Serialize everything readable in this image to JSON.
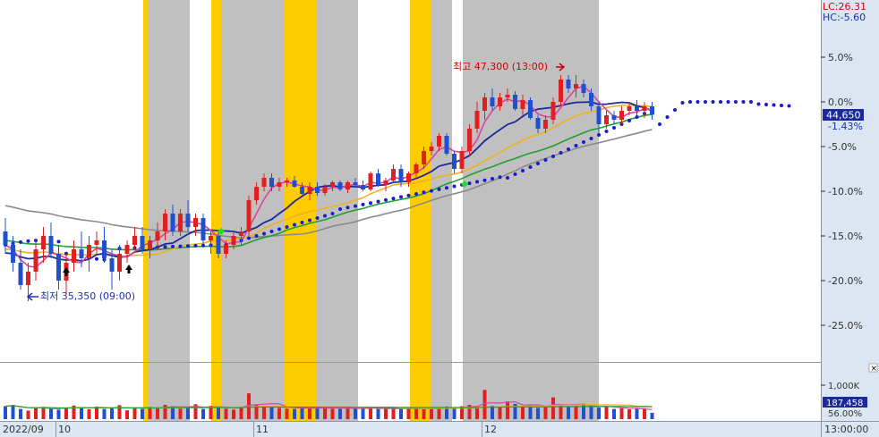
{
  "corner_labels": {
    "lc": "LC:26.31",
    "hc": "HC:-5.60"
  },
  "annotations": {
    "high_label": "최고 47,300 (13:00)",
    "low_label": "최저 35,350 (09:00)"
  },
  "price_panel": {
    "current_price": "44,650",
    "current_pct": "-1.43%"
  },
  "volume_panel": {
    "tick_label": "1,000K",
    "current_volume": "187,458",
    "current_pct": "56.00%",
    "close_icon": "close-icon"
  },
  "x_axis": {
    "labels": [
      "2022/09",
      "10",
      "11",
      "12"
    ],
    "time_label": "13:00:00"
  },
  "colors": {
    "up": "#e02020",
    "down": "#2050d0",
    "ma5": "#e040a0",
    "ma20": "#1a2a9a",
    "ma60": "#f0b020",
    "ma120": "#20a030",
    "ma240": "#8a8a8a",
    "sar": "#1a1ad0",
    "gray_band": "#c0c0c0",
    "yellow_band": "#ffcc00",
    "axis_panel": "#dce6f2",
    "price_box": "#1a2a9a"
  },
  "chart_data": {
    "type": "candlestick",
    "y_axis_unit": "%",
    "y_ticks": [
      "5.0%",
      "0.0%",
      "-5.0%",
      "-10.0%",
      "-15.0%",
      "-20.0%",
      "-25.0%"
    ],
    "y_range_pct": [
      -30,
      7
    ],
    "high_pct": 3.0,
    "low_pct": -22.3,
    "current_pct": -1.43,
    "candles_pct": [
      [
        -14.5,
        -13.0,
        -17.0,
        -16.0
      ],
      [
        -16.0,
        -15.0,
        -19.0,
        -18.0
      ],
      [
        -18.0,
        -16.5,
        -21.0,
        -20.5
      ],
      [
        -20.5,
        -18.0,
        -22.3,
        -19.0
      ],
      [
        -19.0,
        -15.5,
        -20.0,
        -16.5
      ],
      [
        -16.5,
        -14.0,
        -18.0,
        -15.0
      ],
      [
        -15.0,
        -13.5,
        -17.5,
        -17.0
      ],
      [
        -17.0,
        -16.0,
        -21.0,
        -20.0
      ],
      [
        -20.0,
        -17.0,
        -21.5,
        -18.0
      ],
      [
        -18.0,
        -15.5,
        -19.0,
        -16.5
      ],
      [
        -16.5,
        -14.5,
        -18.5,
        -17.5
      ],
      [
        -17.5,
        -15.0,
        -19.0,
        -16.0
      ],
      [
        -16.0,
        -14.5,
        -17.0,
        -15.5
      ],
      [
        -15.5,
        -14.0,
        -18.0,
        -17.5
      ],
      [
        -17.5,
        -16.5,
        -21.0,
        -19.0
      ],
      [
        -19.0,
        -16.0,
        -20.0,
        -17.0
      ],
      [
        -17.0,
        -15.5,
        -18.0,
        -16.0
      ],
      [
        -16.0,
        -14.0,
        -16.5,
        -15.0
      ],
      [
        -15.0,
        -14.0,
        -17.0,
        -16.5
      ],
      [
        -16.5,
        -15.0,
        -17.5,
        -15.5
      ],
      [
        -15.5,
        -13.5,
        -16.5,
        -14.5
      ],
      [
        -14.5,
        -12.0,
        -15.5,
        -12.5
      ],
      [
        -12.5,
        -11.5,
        -15.0,
        -14.5
      ],
      [
        -14.5,
        -12.0,
        -15.0,
        -12.5
      ],
      [
        -12.5,
        -11.0,
        -14.5,
        -14.0
      ],
      [
        -14.0,
        -12.5,
        -15.0,
        -13.0
      ],
      [
        -13.0,
        -12.5,
        -16.0,
        -15.5
      ],
      [
        -15.5,
        -14.5,
        -17.0,
        -15.0
      ],
      [
        -15.0,
        -14.5,
        -17.5,
        -17.0
      ],
      [
        -17.0,
        -15.5,
        -17.5,
        -16.0
      ],
      [
        -16.0,
        -14.5,
        -16.5,
        -15.0
      ],
      [
        -15.0,
        -14.0,
        -16.0,
        -14.5
      ],
      [
        -14.5,
        -10.5,
        -15.0,
        -11.0
      ],
      [
        -11.0,
        -9.0,
        -11.5,
        -9.5
      ],
      [
        -9.5,
        -8.0,
        -10.0,
        -8.5
      ],
      [
        -8.5,
        -8.0,
        -10.0,
        -9.5
      ],
      [
        -9.5,
        -8.5,
        -10.0,
        -9.0
      ],
      [
        -9.0,
        -8.5,
        -9.5,
        -8.8
      ],
      [
        -8.8,
        -8.3,
        -9.6,
        -9.5
      ],
      [
        -9.5,
        -9.0,
        -10.5,
        -10.3
      ],
      [
        -10.3,
        -9.0,
        -11.0,
        -9.5
      ],
      [
        -9.5,
        -9.0,
        -10.5,
        -10.2
      ],
      [
        -10.2,
        -9.2,
        -10.5,
        -9.5
      ],
      [
        -9.5,
        -8.8,
        -10.0,
        -9.0
      ],
      [
        -9.0,
        -8.8,
        -10.0,
        -9.8
      ],
      [
        -9.8,
        -8.8,
        -10.2,
        -9.0
      ],
      [
        -9.0,
        -8.5,
        -9.5,
        -9.3
      ],
      [
        -9.3,
        -8.8,
        -10.0,
        -9.8
      ],
      [
        -9.8,
        -7.8,
        -10.0,
        -8.0
      ],
      [
        -8.0,
        -7.5,
        -9.5,
        -9.3
      ],
      [
        -9.3,
        -8.5,
        -10.0,
        -8.8
      ],
      [
        -8.8,
        -7.0,
        -9.0,
        -7.5
      ],
      [
        -7.5,
        -7.0,
        -9.5,
        -9.0
      ],
      [
        -9.0,
        -7.8,
        -9.5,
        -8.0
      ],
      [
        -8.0,
        -6.8,
        -8.5,
        -7.0
      ],
      [
        -7.0,
        -5.0,
        -7.5,
        -5.5
      ],
      [
        -5.5,
        -4.5,
        -6.0,
        -5.0
      ],
      [
        -5.0,
        -3.5,
        -5.5,
        -3.8
      ],
      [
        -3.8,
        -3.5,
        -6.0,
        -5.8
      ],
      [
        -5.8,
        -5.5,
        -8.0,
        -7.5
      ],
      [
        -7.5,
        -5.0,
        -8.0,
        -5.5
      ],
      [
        -5.5,
        -2.5,
        -6.0,
        -3.0
      ],
      [
        -3.0,
        0.0,
        -3.5,
        -1.0
      ],
      [
        -1.0,
        1.0,
        -2.0,
        0.5
      ],
      [
        0.5,
        1.5,
        -1.0,
        -0.5
      ],
      [
        -0.5,
        1.0,
        -1.0,
        0.5
      ],
      [
        0.5,
        1.5,
        0.0,
        0.8
      ],
      [
        0.8,
        1.2,
        -1.0,
        -0.8
      ],
      [
        -0.8,
        0.8,
        -1.5,
        0.2
      ],
      [
        0.2,
        0.5,
        -2.0,
        -1.8
      ],
      [
        -1.8,
        -1.5,
        -3.5,
        -3.0
      ],
      [
        -3.0,
        -1.5,
        -3.5,
        -2.0
      ],
      [
        -2.0,
        0.5,
        -2.5,
        0.0
      ],
      [
        0.0,
        3.0,
        -0.5,
        2.5
      ],
      [
        2.5,
        3.0,
        1.0,
        1.5
      ],
      [
        1.5,
        3.0,
        0.5,
        2.0
      ],
      [
        2.0,
        2.5,
        0.5,
        1.0
      ],
      [
        1.0,
        1.5,
        -1.0,
        -0.5
      ],
      [
        -0.5,
        0.0,
        -3.5,
        -2.5
      ],
      [
        -2.5,
        -1.0,
        -3.0,
        -1.5
      ],
      [
        -1.5,
        -1.0,
        -2.5,
        -2.0
      ],
      [
        -2.0,
        -0.5,
        -2.5,
        -1.0
      ],
      [
        -1.0,
        0.0,
        -1.5,
        -0.5
      ],
      [
        -0.5,
        0.2,
        -1.5,
        -1.0
      ],
      [
        -1.0,
        0.0,
        -1.8,
        -0.5
      ],
      [
        -0.5,
        0.0,
        -2.0,
        -1.43
      ]
    ],
    "volume_k": [
      380,
      420,
      300,
      250,
      340,
      360,
      310,
      280,
      330,
      400,
      350,
      290,
      370,
      300,
      320,
      410,
      260,
      340,
      300,
      360,
      330,
      420,
      380,
      310,
      350,
      440,
      300,
      390,
      340,
      310,
      280,
      360,
      760,
      420,
      390,
      360,
      330,
      310,
      300,
      340,
      320,
      350,
      330,
      310,
      300,
      340,
      310,
      320,
      330,
      300,
      310,
      320,
      300,
      340,
      310,
      290,
      300,
      330,
      370,
      320,
      380,
      420,
      360,
      860,
      390,
      340,
      520,
      450,
      380,
      420,
      330,
      360,
      640,
      410,
      360,
      390,
      420,
      370,
      340,
      360,
      300,
      320,
      290,
      310,
      300,
      187
    ]
  }
}
